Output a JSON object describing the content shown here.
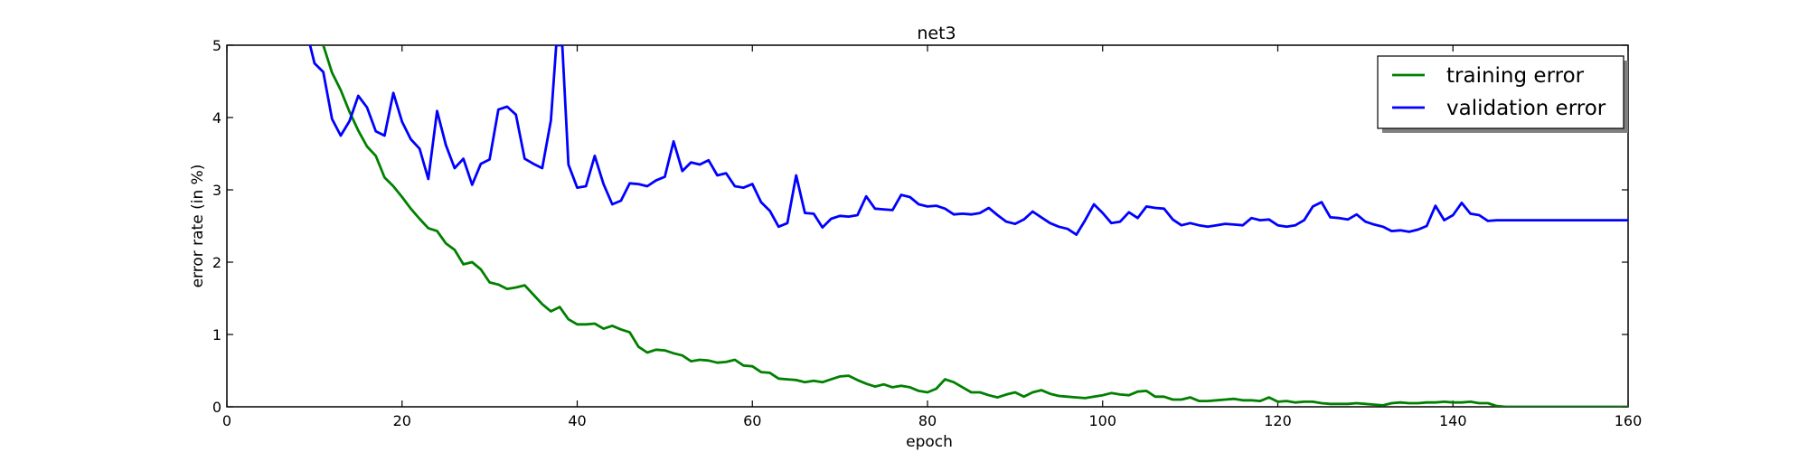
{
  "chart_data": {
    "type": "line",
    "title": "net3",
    "xlabel": "epoch",
    "ylabel": "error rate (in %)",
    "xlim": [
      0,
      160
    ],
    "ylim": [
      0,
      5
    ],
    "xticks": [
      0,
      20,
      40,
      60,
      80,
      100,
      120,
      140,
      160
    ],
    "yticks": [
      0,
      1,
      2,
      3,
      4,
      5
    ],
    "grid": false,
    "legend": "top-right",
    "series": [
      {
        "name": "training error",
        "color": "#008000",
        "x": [
          11,
          12,
          13,
          14,
          15,
          16,
          17,
          18,
          19,
          20,
          21,
          22,
          23,
          24,
          25,
          26,
          27,
          28,
          29,
          30,
          31,
          32,
          33,
          34,
          35,
          36,
          37,
          38,
          39,
          40,
          41,
          42,
          43,
          44,
          45,
          46,
          47,
          48,
          49,
          50,
          51,
          52,
          53,
          54,
          55,
          56,
          57,
          58,
          59,
          60,
          61,
          62,
          63,
          64,
          65,
          66,
          67,
          68,
          69,
          70,
          71,
          72,
          73,
          74,
          75,
          76,
          77,
          78,
          79,
          80,
          81,
          82,
          83,
          84,
          85,
          86,
          87,
          88,
          89,
          90,
          91,
          92,
          93,
          94,
          95,
          96,
          97,
          98,
          99,
          100,
          101,
          102,
          103,
          104,
          105,
          106,
          107,
          108,
          109,
          110,
          111,
          112,
          113,
          114,
          115,
          116,
          117,
          118,
          119,
          120,
          121,
          122,
          123,
          124,
          125,
          126,
          127,
          128,
          129,
          130,
          131,
          132,
          133,
          134,
          135,
          136,
          137,
          138,
          139,
          140,
          141,
          142,
          143,
          144,
          145,
          146,
          147,
          148,
          149,
          150,
          151,
          152,
          153,
          154,
          155,
          156,
          157,
          158,
          159,
          160
        ],
        "values": [
          5.0,
          4.62,
          4.38,
          4.08,
          3.82,
          3.6,
          3.47,
          3.17,
          3.05,
          2.9,
          2.74,
          2.6,
          2.47,
          2.43,
          2.26,
          2.17,
          1.97,
          2.0,
          1.9,
          1.72,
          1.69,
          1.63,
          1.65,
          1.68,
          1.55,
          1.42,
          1.32,
          1.38,
          1.21,
          1.14,
          1.14,
          1.15,
          1.08,
          1.12,
          1.07,
          1.03,
          0.83,
          0.75,
          0.79,
          0.78,
          0.74,
          0.71,
          0.63,
          0.65,
          0.64,
          0.61,
          0.62,
          0.65,
          0.57,
          0.56,
          0.48,
          0.47,
          0.39,
          0.38,
          0.37,
          0.34,
          0.36,
          0.34,
          0.38,
          0.42,
          0.43,
          0.37,
          0.32,
          0.28,
          0.31,
          0.27,
          0.29,
          0.27,
          0.22,
          0.2,
          0.25,
          0.38,
          0.34,
          0.27,
          0.2,
          0.2,
          0.16,
          0.13,
          0.17,
          0.2,
          0.14,
          0.2,
          0.23,
          0.18,
          0.15,
          0.14,
          0.13,
          0.12,
          0.14,
          0.16,
          0.19,
          0.17,
          0.16,
          0.21,
          0.22,
          0.14,
          0.14,
          0.1,
          0.1,
          0.13,
          0.08,
          0.08,
          0.09,
          0.1,
          0.11,
          0.09,
          0.09,
          0.08,
          0.13,
          0.07,
          0.08,
          0.06,
          0.07,
          0.07,
          0.05,
          0.04,
          0.04,
          0.04,
          0.05,
          0.04,
          0.03,
          0.02,
          0.05,
          0.06,
          0.05,
          0.05,
          0.06,
          0.06,
          0.07,
          0.06,
          0.06,
          0.07,
          0.05,
          0.05,
          0.01,
          0.0,
          0.0,
          0.0,
          0.0,
          0.0,
          0.0,
          0.0,
          0.0,
          0.0,
          0.0,
          0.0,
          0.0,
          0.0,
          0.0,
          0.0
        ]
      },
      {
        "name": "validation error",
        "color": "#0000ff",
        "x": [
          9.5,
          10,
          11,
          12,
          13,
          14,
          15,
          16,
          17,
          18,
          19,
          20,
          21,
          22,
          23,
          24,
          25,
          26,
          27,
          28,
          29,
          30,
          31,
          32,
          33,
          34,
          35,
          36,
          37,
          37.6,
          38.3,
          39,
          40,
          41,
          42,
          43,
          44,
          45,
          46,
          47,
          48,
          49,
          50,
          51,
          52,
          53,
          54,
          55,
          56,
          57,
          58,
          59,
          60,
          61,
          62,
          63,
          64,
          65,
          66,
          67,
          68,
          69,
          70,
          71,
          72,
          73,
          74,
          75,
          76,
          77,
          78,
          79,
          80,
          81,
          82,
          83,
          84,
          85,
          86,
          87,
          88,
          89,
          90,
          91,
          92,
          93,
          94,
          95,
          96,
          97,
          98,
          99,
          100,
          101,
          102,
          103,
          104,
          105,
          106,
          107,
          108,
          109,
          110,
          111,
          112,
          113,
          114,
          115,
          116,
          117,
          118,
          119,
          120,
          121,
          122,
          123,
          124,
          125,
          126,
          127,
          128,
          129,
          130,
          131,
          132,
          133,
          134,
          135,
          136,
          137,
          138,
          139,
          140,
          141,
          142,
          143,
          144,
          145,
          160
        ],
        "values": [
          5.0,
          4.75,
          4.63,
          3.98,
          3.75,
          3.95,
          4.3,
          4.14,
          3.81,
          3.75,
          4.34,
          3.94,
          3.7,
          3.57,
          3.15,
          4.09,
          3.62,
          3.3,
          3.43,
          3.07,
          3.36,
          3.42,
          4.11,
          4.15,
          4.04,
          3.43,
          3.36,
          3.3,
          3.96,
          5.0,
          5.0,
          3.35,
          3.03,
          3.05,
          3.47,
          3.08,
          2.8,
          2.85,
          3.09,
          3.08,
          3.05,
          3.13,
          3.18,
          3.67,
          3.26,
          3.38,
          3.35,
          3.41,
          3.2,
          3.23,
          3.05,
          3.03,
          3.08,
          2.83,
          2.71,
          2.49,
          2.54,
          3.2,
          2.68,
          2.67,
          2.48,
          2.6,
          2.64,
          2.63,
          2.65,
          2.91,
          2.74,
          2.73,
          2.72,
          2.93,
          2.9,
          2.8,
          2.77,
          2.78,
          2.74,
          2.66,
          2.67,
          2.66,
          2.68,
          2.75,
          2.65,
          2.56,
          2.53,
          2.59,
          2.7,
          2.62,
          2.54,
          2.49,
          2.46,
          2.38,
          2.58,
          2.8,
          2.68,
          2.54,
          2.56,
          2.69,
          2.61,
          2.77,
          2.75,
          2.74,
          2.59,
          2.51,
          2.54,
          2.51,
          2.49,
          2.51,
          2.53,
          2.52,
          2.51,
          2.61,
          2.58,
          2.59,
          2.51,
          2.49,
          2.51,
          2.58,
          2.77,
          2.83,
          2.62,
          2.61,
          2.59,
          2.66,
          2.56,
          2.52,
          2.49,
          2.43,
          2.44,
          2.42,
          2.45,
          2.5,
          2.78,
          2.58,
          2.65,
          2.82,
          2.67,
          2.65,
          2.57,
          2.58,
          2.58
        ]
      }
    ]
  }
}
